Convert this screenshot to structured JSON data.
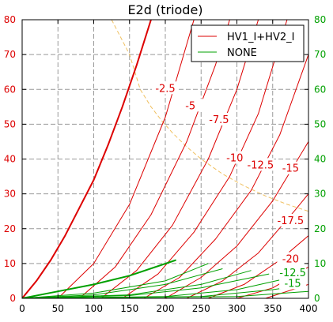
{
  "chart_data": {
    "type": "line",
    "title": "E2d (triode)",
    "xlabel": "",
    "ylabel": "",
    "xlim": [
      0,
      400
    ],
    "ylim": [
      0,
      80
    ],
    "xticks": [
      "0",
      "50",
      "100",
      "150",
      "200",
      "250",
      "300",
      "350",
      "400"
    ],
    "yticks_left": [
      "0",
      "10",
      "20",
      "30",
      "40",
      "50",
      "60",
      "70",
      "80"
    ],
    "yticks_right": [
      "0",
      "10",
      "20",
      "30",
      "40",
      "50",
      "60",
      "70",
      "80"
    ],
    "grid": true,
    "legend": {
      "placement": "top-right",
      "entries": [
        {
          "label": "HV1_I+HV2_I",
          "color": "#dd0000"
        },
        {
          "label": "NONE",
          "color": "#00a000"
        }
      ]
    },
    "colors": {
      "red": "#dd0000",
      "green": "#00a000",
      "dissipation": "#f0c060",
      "grid": "#999999",
      "right_axis_text": "#00a000"
    },
    "series": [
      {
        "name": "HV1_I+HV2_I",
        "bold": true,
        "label": "",
        "x": [
          0,
          20,
          40,
          60,
          80,
          100,
          120,
          140,
          160,
          180
        ],
        "y": [
          0,
          5,
          11,
          18,
          26,
          34,
          44,
          55,
          67,
          80
        ]
      },
      {
        "name": "HV1_I+HV2_I",
        "label": "-2.5",
        "label_xy": [
          200,
          60
        ],
        "x": [
          50,
          100,
          150,
          200,
          240
        ],
        "y": [
          0,
          10,
          27,
          52,
          80
        ]
      },
      {
        "name": "HV1_I+HV2_I",
        "label": "-5",
        "label_xy": [
          235,
          55
        ],
        "x": [
          80,
          130,
          180,
          230,
          270,
          290
        ],
        "y": [
          0,
          9,
          24,
          45,
          67,
          80
        ]
      },
      {
        "name": "HV1_I+HV2_I",
        "label": "-7.5",
        "label_xy": [
          275,
          51
        ],
        "x": [
          110,
          160,
          210,
          260,
          300,
          330
        ],
        "y": [
          0,
          8,
          21,
          40,
          60,
          80
        ]
      },
      {
        "name": "HV1_I+HV2_I",
        "label": "-10",
        "label_xy": [
          297,
          40
        ],
        "x": [
          140,
          190,
          240,
          290,
          330,
          370
        ],
        "y": [
          0,
          7,
          19,
          35,
          53,
          80
        ]
      },
      {
        "name": "HV1_I+HV2_I",
        "label": "-12.5",
        "label_xy": [
          333,
          38
        ],
        "x": [
          170,
          220,
          270,
          320,
          360,
          400
        ],
        "y": [
          0,
          6,
          17,
          31,
          47,
          70
        ]
      },
      {
        "name": "HV1_I+HV2_I",
        "label": "-15",
        "label_xy": [
          375,
          37
        ],
        "x": [
          200,
          250,
          300,
          350,
          400
        ],
        "y": [
          0,
          6,
          15,
          28,
          45
        ]
      },
      {
        "name": "HV1_I+HV2_I",
        "label": "-17.5",
        "label_xy": [
          375,
          22
        ],
        "x": [
          230,
          280,
          330,
          380,
          400
        ],
        "y": [
          0,
          5,
          13,
          25,
          30
        ]
      },
      {
        "name": "HV1_I+HV2_I",
        "label": "-20",
        "label_xy": [
          375,
          11
        ],
        "x": [
          260,
          310,
          360,
          400
        ],
        "y": [
          0,
          4,
          11,
          18
        ]
      },
      {
        "name": "HV1_I+HV2_I",
        "label": "",
        "x": [
          300,
          350,
          400
        ],
        "y": [
          0,
          3,
          9
        ]
      },
      {
        "name": "HV1_I+HV2_I",
        "label": "",
        "x": [
          340,
          400
        ],
        "y": [
          0,
          4
        ]
      },
      {
        "name": "NONE",
        "bold": true,
        "label": "",
        "x": [
          0,
          50,
          100,
          150,
          215
        ],
        "y": [
          0,
          2,
          4,
          6.5,
          11
        ]
      },
      {
        "name": "NONE",
        "label": "",
        "x": [
          0,
          100,
          200,
          260
        ],
        "y": [
          0,
          1.5,
          5,
          10
        ]
      },
      {
        "name": "NONE",
        "label": "",
        "x": [
          0,
          100,
          200,
          280
        ],
        "y": [
          0,
          1,
          4,
          8.5
        ]
      },
      {
        "name": "NONE",
        "label": "",
        "x": [
          0,
          150,
          250,
          320
        ],
        "y": [
          0,
          1,
          4,
          8
        ]
      },
      {
        "name": "NONE",
        "label": "-12.5",
        "label_xy": [
          378,
          7
        ],
        "x": [
          0,
          150,
          250,
          345
        ],
        "y": [
          0,
          0.8,
          3,
          7
        ]
      },
      {
        "name": "NONE",
        "label": "-15",
        "label_xy": [
          378,
          4
        ],
        "x": [
          0,
          200,
          300,
          365
        ],
        "y": [
          0,
          0.5,
          2.5,
          5.5
        ]
      },
      {
        "name": "NONE",
        "label": "",
        "x": [
          0,
          250,
          350,
          385
        ],
        "y": [
          0,
          0.5,
          2.5,
          3.5
        ]
      },
      {
        "name": "NONE",
        "label": "",
        "x": [
          0,
          300,
          400
        ],
        "y": [
          0,
          0.5,
          2
        ]
      }
    ],
    "dissipation_curve": {
      "x": [
        125,
        150,
        165,
        180,
        195,
        210,
        230,
        250,
        280,
        310,
        340,
        370,
        400
      ],
      "y": [
        80,
        70,
        60,
        55,
        51,
        47.5,
        43.5,
        40,
        35.7,
        32.3,
        29.4,
        27,
        25
      ]
    }
  }
}
